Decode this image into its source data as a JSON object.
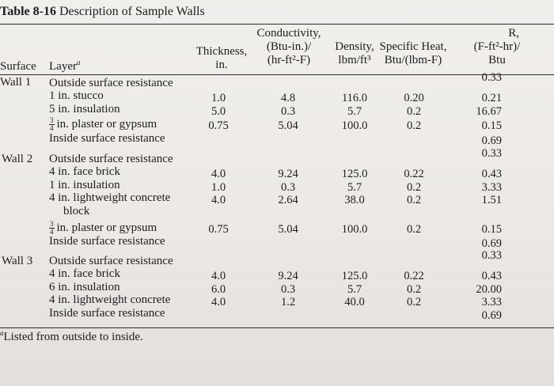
{
  "table": {
    "title_bold": "Table 8-16",
    "title_rest": "Description of Sample Walls",
    "headers": {
      "surface": "Surface",
      "layer": "Layer",
      "layer_mark": "a",
      "thickness_1": "Thickness,",
      "thickness_2": "in.",
      "conductivity_1": "Conductivity,",
      "conductivity_2": "(Btu-in.)/",
      "conductivity_3": "(hr-ft²-F)",
      "density_1": "Density,",
      "density_2": "lbm/ft³",
      "specific_heat_1": "Specific Heat,",
      "specific_heat_2": "Btu/(lbm-F)",
      "r_1": "R,",
      "r_2": "(F-ft²-hr)/",
      "r_3": "Btu"
    },
    "walls": [
      {
        "name": "Wall 1",
        "layers": [
          {
            "layer": "Outside surface resistance",
            "thickness": "",
            "conductivity": "",
            "density": "",
            "specific_heat": "",
            "r": "0.33"
          },
          {
            "layer": "1 in. stucco",
            "thickness": "1.0",
            "conductivity": "4.8",
            "density": "116.0",
            "specific_heat": "0.20",
            "r": "0.21"
          },
          {
            "layer": "5 in. insulation",
            "thickness": "5.0",
            "conductivity": "0.3",
            "density": "5.7",
            "specific_heat": "0.2",
            "r": "16.67"
          },
          {
            "frac_num": "3",
            "frac_den": "4",
            "layer": "in. plaster or gypsum",
            "thickness": "0.75",
            "conductivity": "5.04",
            "density": "100.0",
            "specific_heat": "0.2",
            "r": "0.15"
          },
          {
            "layer": "Inside surface resistance",
            "thickness": "",
            "conductivity": "",
            "density": "",
            "specific_heat": "",
            "r": "0.69"
          }
        ]
      },
      {
        "name": "Wall 2",
        "layers": [
          {
            "layer": "Outside surface resistance",
            "thickness": "",
            "conductivity": "",
            "density": "",
            "specific_heat": "",
            "r": "0.33"
          },
          {
            "layer": "4 in. face brick",
            "thickness": "4.0",
            "conductivity": "9.24",
            "density": "125.0",
            "specific_heat": "0.22",
            "r": "0.43"
          },
          {
            "layer": "1 in. insulation",
            "thickness": "1.0",
            "conductivity": "0.3",
            "density": "5.7",
            "specific_heat": "0.2",
            "r": "3.33"
          },
          {
            "layer": "4 in. lightweight concrete",
            "layer_line2": "block",
            "thickness": "4.0",
            "conductivity": "2.64",
            "density": "38.0",
            "specific_heat": "0.2",
            "r": "1.51"
          },
          {
            "frac_num": "3",
            "frac_den": "4",
            "layer": "in. plaster or gypsum",
            "thickness": "0.75",
            "conductivity": "5.04",
            "density": "100.0",
            "specific_heat": "0.2",
            "r": "0.15"
          },
          {
            "layer": "Inside surface resistance",
            "thickness": "",
            "conductivity": "",
            "density": "",
            "specific_heat": "",
            "r": "0.69"
          }
        ]
      },
      {
        "name": "Wall 3",
        "layers": [
          {
            "layer": "Outside surface resistance",
            "thickness": "",
            "conductivity": "",
            "density": "",
            "specific_heat": "",
            "r": "0.33"
          },
          {
            "layer": "4 in. face brick",
            "thickness": "4.0",
            "conductivity": "9.24",
            "density": "125.0",
            "specific_heat": "0.22",
            "r": "0.43"
          },
          {
            "layer": "6 in. insulation",
            "thickness": "6.0",
            "conductivity": "0.3",
            "density": "5.7",
            "specific_heat": "0.2",
            "r": "20.00"
          },
          {
            "layer": "4 in. lightweight concrete",
            "thickness": "4.0",
            "conductivity": "1.2",
            "density": "40.0",
            "specific_heat": "0.2",
            "r": "3.33"
          },
          {
            "layer": "Inside surface resistance",
            "thickness": "",
            "conductivity": "",
            "density": "",
            "specific_heat": "",
            "r": "0.69"
          }
        ]
      }
    ],
    "footnote_mark": "a",
    "footnote": "Listed from outside to inside."
  }
}
